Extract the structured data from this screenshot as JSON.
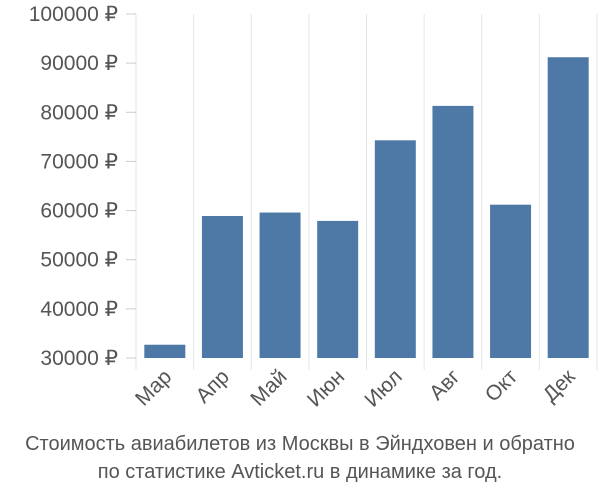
{
  "chart_data": {
    "type": "bar",
    "categories": [
      "Мар",
      "Апр",
      "Май",
      "Июн",
      "Июл",
      "Авг",
      "Окт",
      "Дек"
    ],
    "values": [
      32700,
      58900,
      59600,
      57900,
      74300,
      81300,
      61200,
      91200
    ],
    "ylim": [
      30000,
      100000
    ],
    "yticks": [
      30000,
      40000,
      50000,
      60000,
      70000,
      80000,
      90000,
      100000
    ],
    "ytick_labels": [
      "30000 ₽",
      "40000 ₽",
      "50000 ₽",
      "60000 ₽",
      "70000 ₽",
      "80000 ₽",
      "90000 ₽",
      "100000 ₽"
    ],
    "grid": "vertical",
    "bar_color": "#4e79a7"
  },
  "caption": {
    "line1": "Стоимость авиабилетов из Москвы в Эйндховен и обратно",
    "line2": "по статистике Avticket.ru в динамике за год."
  }
}
